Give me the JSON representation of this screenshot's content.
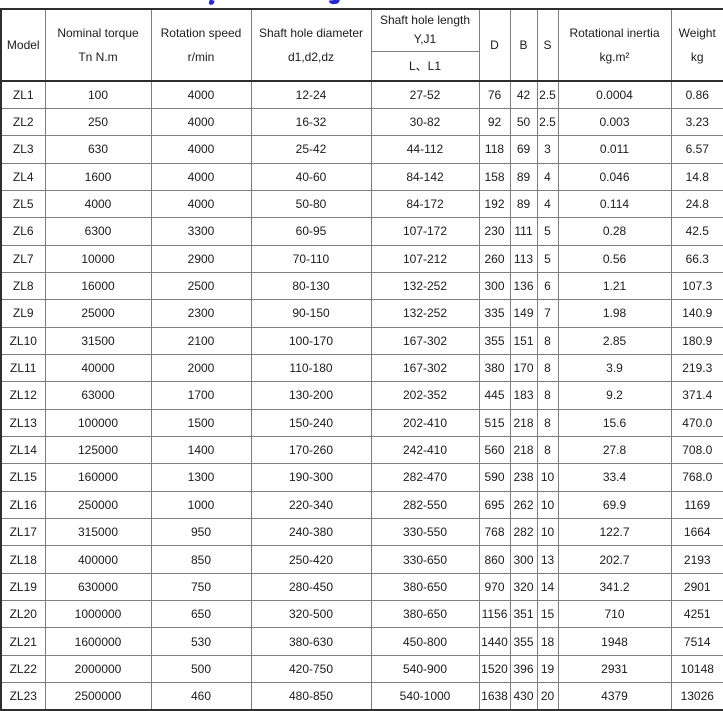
{
  "decor": {
    "cropped_title_remnant_color": "#2828d8",
    "outer_border_color": "#2e2e2e",
    "grid_line_color": "#7e7e7e",
    "text_color": "#1b1b1b",
    "background_color": "#ffffff"
  },
  "chart_data": {
    "type": "table",
    "columns": [
      {
        "id": "model",
        "lines": [
          "Model"
        ]
      },
      {
        "id": "nominal-torque",
        "lines": [
          "Nominal torque",
          "Tn N.m"
        ]
      },
      {
        "id": "rotation-speed",
        "lines": [
          "Rotation speed",
          "r/min"
        ]
      },
      {
        "id": "shaft-hole-diameter",
        "lines": [
          "Shaft hole diameter",
          "d1,d2,dz"
        ]
      },
      {
        "id": "shaft-hole-length",
        "lines": [
          "Shaft hole length",
          "Y,J1"
        ],
        "subheader": "L、L1"
      },
      {
        "id": "d",
        "lines": [
          "D"
        ]
      },
      {
        "id": "b",
        "lines": [
          "B"
        ]
      },
      {
        "id": "s",
        "lines": [
          "S"
        ]
      },
      {
        "id": "rotational-inertia",
        "lines": [
          "Rotational inertia",
          "kg.m²"
        ]
      },
      {
        "id": "weight",
        "lines": [
          "Weight",
          "kg"
        ]
      }
    ],
    "rows": [
      [
        "ZL1",
        "100",
        "4000",
        "12-24",
        "27-52",
        "76",
        "42",
        "2.5",
        "0.0004",
        "0.86"
      ],
      [
        "ZL2",
        "250",
        "4000",
        "16-32",
        "30-82",
        "92",
        "50",
        "2.5",
        "0.003",
        "3.23"
      ],
      [
        "ZL3",
        "630",
        "4000",
        "25-42",
        "44-112",
        "118",
        "69",
        "3",
        "0.011",
        "6.57"
      ],
      [
        "ZL4",
        "1600",
        "4000",
        "40-60",
        "84-142",
        "158",
        "89",
        "4",
        "0.046",
        "14.8"
      ],
      [
        "ZL5",
        "4000",
        "4000",
        "50-80",
        "84-172",
        "192",
        "89",
        "4",
        "0.114",
        "24.8"
      ],
      [
        "ZL6",
        "6300",
        "3300",
        "60-95",
        "107-172",
        "230",
        "111",
        "5",
        "0.28",
        "42.5"
      ],
      [
        "ZL7",
        "10000",
        "2900",
        "70-110",
        "107-212",
        "260",
        "113",
        "5",
        "0.56",
        "66.3"
      ],
      [
        "ZL8",
        "16000",
        "2500",
        "80-130",
        "132-252",
        "300",
        "136",
        "6",
        "1.21",
        "107.3"
      ],
      [
        "ZL9",
        "25000",
        "2300",
        "90-150",
        "132-252",
        "335",
        "149",
        "7",
        "1.98",
        "140.9"
      ],
      [
        "ZL10",
        "31500",
        "2100",
        "100-170",
        "167-302",
        "355",
        "151",
        "8",
        "2.85",
        "180.9"
      ],
      [
        "ZL11",
        "40000",
        "2000",
        "110-180",
        "167-302",
        "380",
        "170",
        "8",
        "3.9",
        "219.3"
      ],
      [
        "ZL12",
        "63000",
        "1700",
        "130-200",
        "202-352",
        "445",
        "183",
        "8",
        "9.2",
        "371.4"
      ],
      [
        "ZL13",
        "100000",
        "1500",
        "150-240",
        "202-410",
        "515",
        "218",
        "8",
        "15.6",
        "470.0"
      ],
      [
        "ZL14",
        "125000",
        "1400",
        "170-260",
        "242-410",
        "560",
        "218",
        "8",
        "27.8",
        "708.0"
      ],
      [
        "ZL15",
        "160000",
        "1300",
        "190-300",
        "282-470",
        "590",
        "238",
        "10",
        "33.4",
        "768.0"
      ],
      [
        "ZL16",
        "250000",
        "1000",
        "220-340",
        "282-550",
        "695",
        "262",
        "10",
        "69.9",
        "1169"
      ],
      [
        "ZL17",
        "315000",
        "950",
        "240-380",
        "330-550",
        "768",
        "282",
        "10",
        "122.7",
        "1664"
      ],
      [
        "ZL18",
        "400000",
        "850",
        "250-420",
        "330-650",
        "860",
        "300",
        "13",
        "202.7",
        "2193"
      ],
      [
        "ZL19",
        "630000",
        "750",
        "280-450",
        "380-650",
        "970",
        "320",
        "14",
        "341.2",
        "2901"
      ],
      [
        "ZL20",
        "1000000",
        "650",
        "320-500",
        "380-650",
        "1156",
        "351",
        "15",
        "710",
        "4251"
      ],
      [
        "ZL21",
        "1600000",
        "530",
        "380-630",
        "450-800",
        "1440",
        "355",
        "18",
        "1948",
        "7514"
      ],
      [
        "ZL22",
        "2000000",
        "500",
        "420-750",
        "540-900",
        "1520",
        "396",
        "19",
        "2931",
        "10148"
      ],
      [
        "ZL23",
        "2500000",
        "460",
        "480-850",
        "540-1000",
        "1638",
        "430",
        "20",
        "4379",
        "13026"
      ]
    ]
  }
}
